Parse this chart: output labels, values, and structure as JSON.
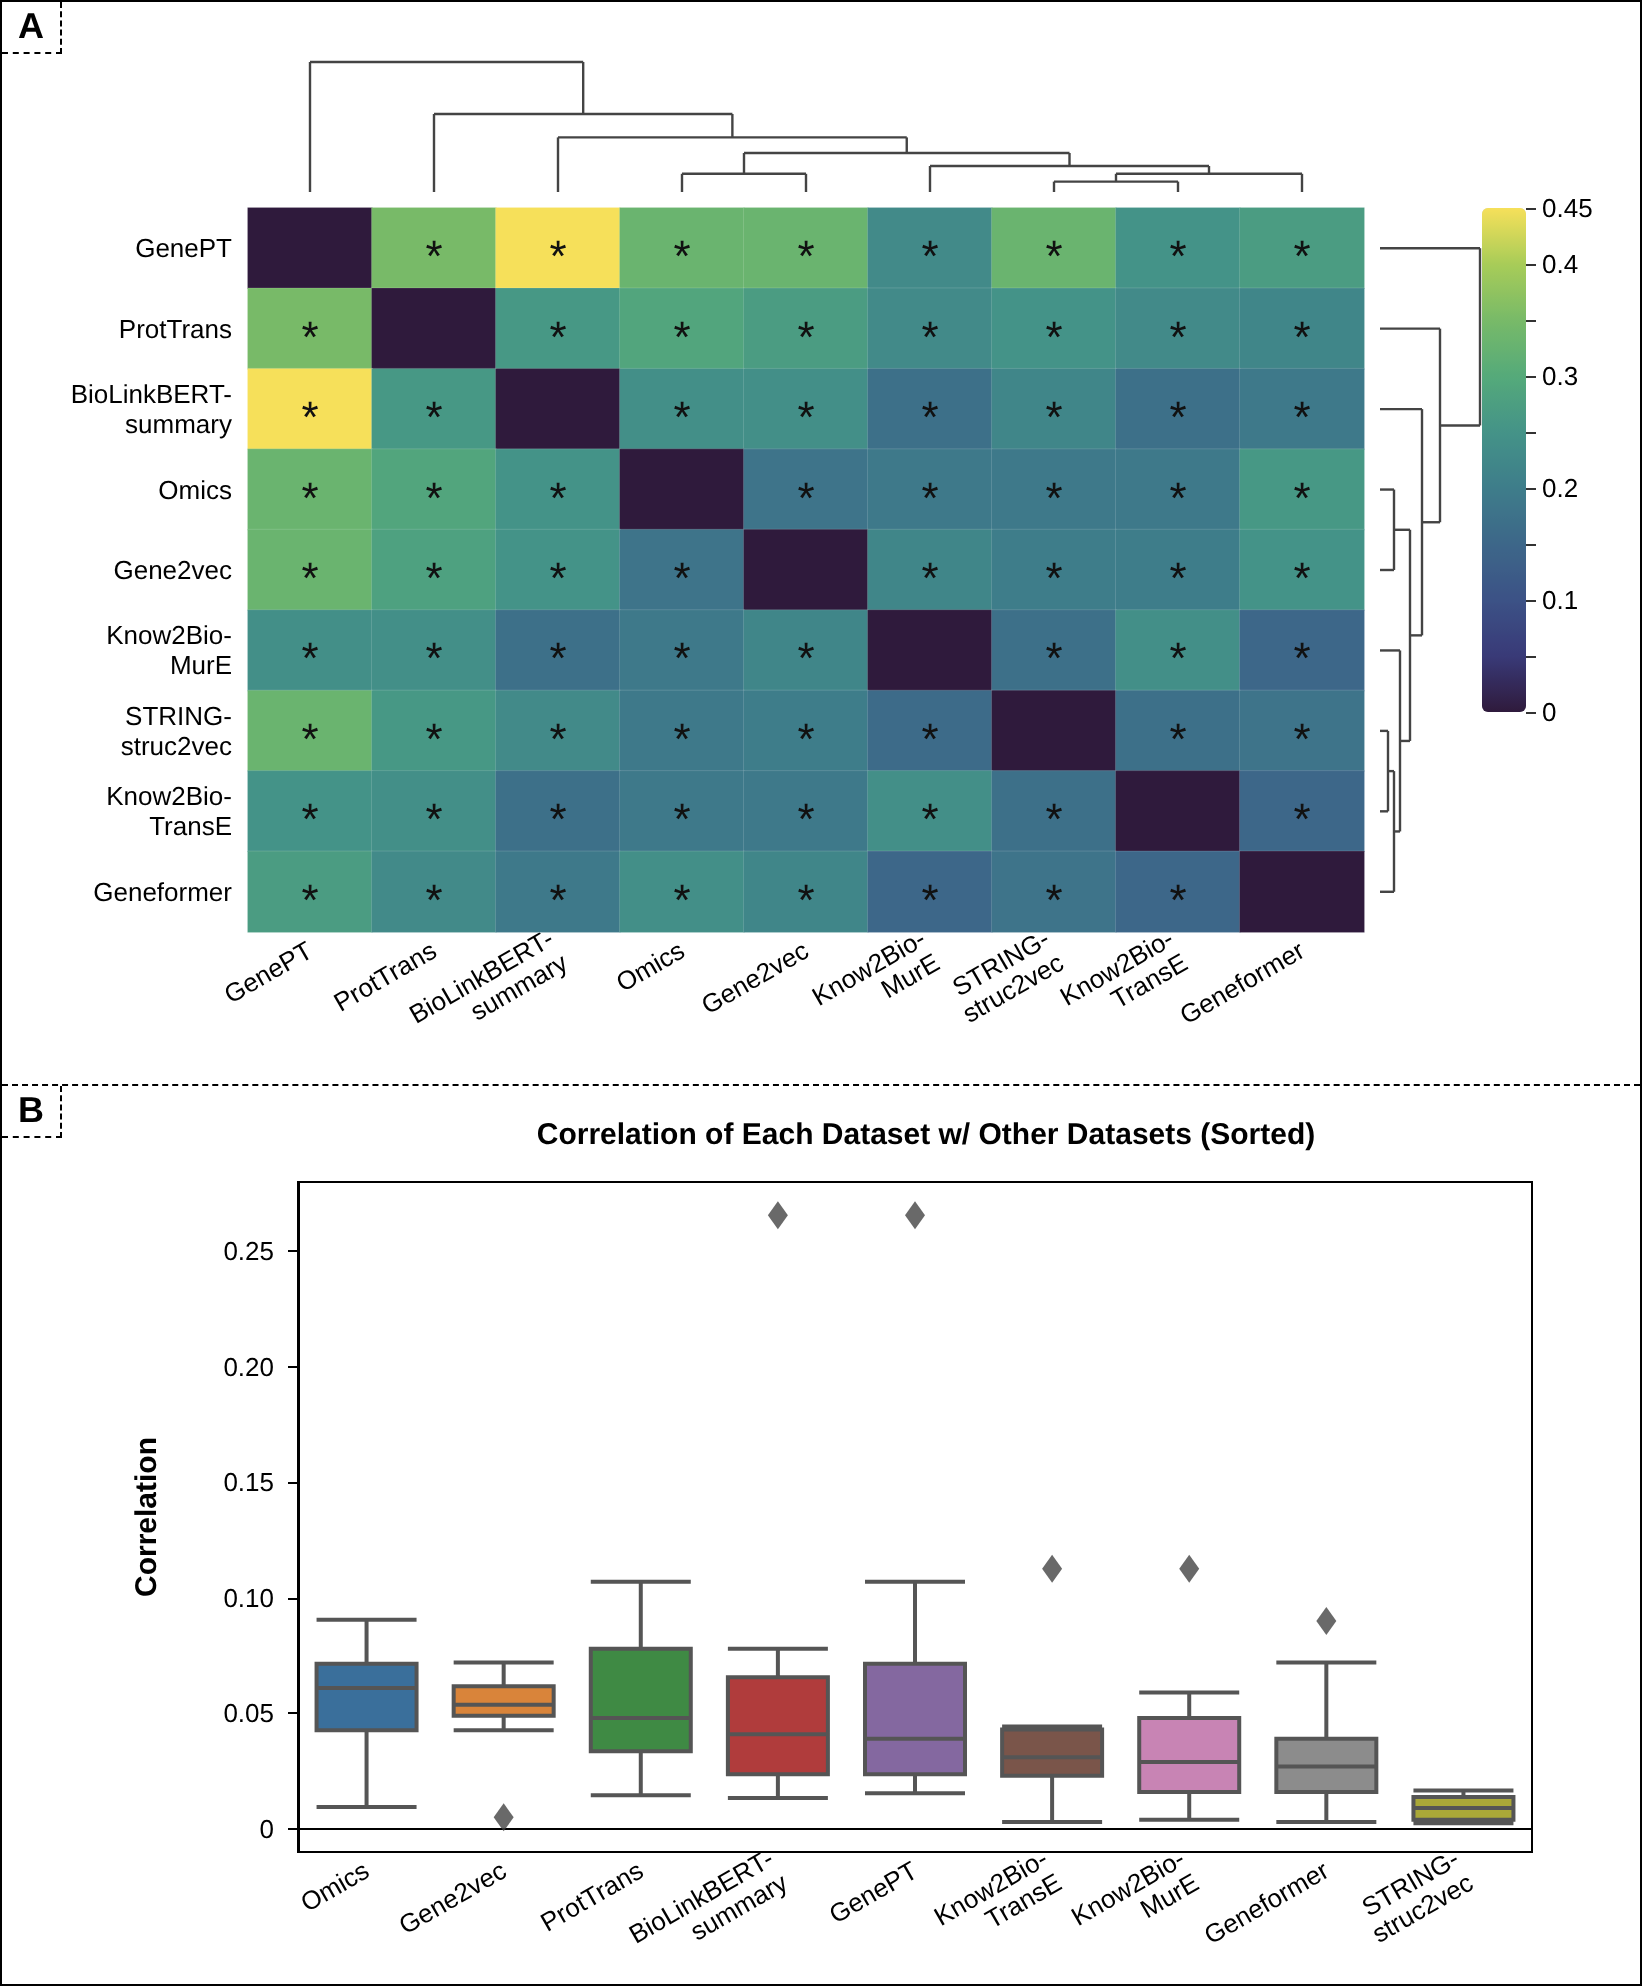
{
  "chart_data": [
    {
      "type": "heatmap",
      "annotations": [
        "A"
      ],
      "categories": [
        "GenePT",
        "ProtTrans",
        "BioLinkBERT-summary",
        "Omics",
        "Gene2vec",
        "Know2Bio-MurE",
        "STRING-struc2vec",
        "Know2Bio-TransE",
        "Geneformer"
      ],
      "y_categories": [
        "GenePT",
        "ProtTrans",
        "BioLinkBERT-summary",
        "Omics",
        "Gene2vec",
        "Know2Bio-MurE",
        "STRING-struc2vec",
        "Know2Bio-TransE",
        "Geneformer"
      ],
      "cells": [
        [
          0,
          0.35,
          0.45,
          0.33,
          0.33,
          0.23,
          0.33,
          0.25,
          0.27
        ],
        [
          0.35,
          0,
          0.26,
          0.29,
          0.27,
          0.23,
          0.25,
          0.23,
          0.22
        ],
        [
          0.45,
          0.26,
          0,
          0.24,
          0.24,
          0.17,
          0.22,
          0.17,
          0.19
        ],
        [
          0.33,
          0.29,
          0.25,
          0,
          0.18,
          0.19,
          0.19,
          0.19,
          0.26
        ],
        [
          0.33,
          0.28,
          0.25,
          0.18,
          0,
          0.22,
          0.2,
          0.2,
          0.25
        ],
        [
          0.24,
          0.24,
          0.17,
          0.19,
          0.22,
          0,
          0.17,
          0.24,
          0.15
        ],
        [
          0.33,
          0.26,
          0.23,
          0.19,
          0.2,
          0.16,
          0,
          0.17,
          0.18
        ],
        [
          0.25,
          0.24,
          0.17,
          0.19,
          0.19,
          0.24,
          0.17,
          0,
          0.15
        ],
        [
          0.27,
          0.23,
          0.19,
          0.24,
          0.22,
          0.15,
          0.18,
          0.15,
          0
        ]
      ],
      "cell_labels": [
        [
          null,
          "*",
          "*",
          "*",
          "*",
          "*",
          "*",
          "*",
          "*"
        ],
        [
          "*",
          null,
          "*",
          "*",
          "*",
          "*",
          "*",
          "*",
          "*"
        ],
        [
          "*",
          "*",
          null,
          "*",
          "*",
          "*",
          "*",
          "*",
          "*"
        ],
        [
          "*",
          "*",
          "*",
          null,
          "*",
          "*",
          "*",
          "*",
          "*"
        ],
        [
          "*",
          "*",
          "*",
          "*",
          null,
          "*",
          "*",
          "*",
          "*"
        ],
        [
          "*",
          "*",
          "*",
          "*",
          "*",
          null,
          "*",
          "*",
          "*"
        ],
        [
          "*",
          "*",
          "*",
          "*",
          "*",
          "*",
          null,
          "*",
          "*"
        ],
        [
          "*",
          "*",
          "*",
          "*",
          "*",
          "*",
          "*",
          null,
          "*"
        ],
        [
          "*",
          "*",
          "*",
          "*",
          "*",
          "*",
          "*",
          "*",
          null
        ]
      ],
      "clim": [
        0,
        0.45
      ],
      "cticks": [
        0,
        {
          "value": 0.05,
          "label": null
        },
        0.1,
        {
          "value": 0.15,
          "label": null
        },
        0.2,
        {
          "value": 0.25,
          "label": null
        },
        0.3,
        {
          "value": 0.35,
          "label": null
        },
        0.4,
        0.45
      ]
    },
    {
      "type": "box",
      "title": "Correlation of Each Dataset w/ Other Datasets (Sorted)",
      "ylabel": "Correlation",
      "annotations": [
        "B"
      ],
      "categories": [
        "Omics",
        "Gene2vec",
        "ProtTrans",
        "BioLinkBERT-summary",
        "GenePT",
        "Know2Bio-TransE",
        "Know2Bio-MurE",
        "Geneformer",
        "STRING-struc2vec"
      ],
      "colors": [
        "#3a6f9b",
        "#d9843a",
        "#3f8a44",
        "#b03c3c",
        "#8468a0",
        "#7a554a",
        "#c884b4",
        "#8c8c8c",
        "#aaa838"
      ],
      "boxes": [
        {
          "low": 0.0095,
          "q1": 0.0427,
          "median": 0.061,
          "q3": 0.0715,
          "high": 0.0905
        },
        {
          "low": 0.0427,
          "q1": 0.049,
          "median": 0.0537,
          "q3": 0.0617,
          "high": 0.072,
          "outliers": [
            0.005
          ]
        },
        {
          "low": 0.0146,
          "q1": 0.0336,
          "median": 0.048,
          "q3": 0.078,
          "high": 0.107
        },
        {
          "low": 0.0134,
          "q1": 0.0237,
          "median": 0.041,
          "q3": 0.0656,
          "high": 0.078,
          "outliers": [
            0.2656
          ]
        },
        {
          "low": 0.0154,
          "q1": 0.0237,
          "median": 0.039,
          "q3": 0.0715,
          "high": 0.107,
          "outliers": [
            0.2656
          ]
        },
        {
          "low": 0.003,
          "q1": 0.023,
          "median": 0.031,
          "q3": 0.043,
          "high": 0.0443,
          "outliers": [
            0.1126
          ]
        },
        {
          "low": 0.004,
          "q1": 0.016,
          "median": 0.029,
          "q3": 0.048,
          "high": 0.059,
          "outliers": [
            0.1126
          ]
        },
        {
          "low": 0.003,
          "q1": 0.016,
          "median": 0.027,
          "q3": 0.039,
          "high": 0.072,
          "outliers": [
            0.09
          ]
        },
        {
          "low": 0.0024,
          "q1": 0.004,
          "median": 0.009,
          "q3": 0.0138,
          "high": 0.0166
        }
      ],
      "ylim": [
        -0.01,
        0.28
      ],
      "yticks": [
        0,
        0.05,
        {
          "value": 0.1,
          "label": "0.10"
        },
        0.15,
        {
          "value": 0.2,
          "label": "0.20"
        },
        0.25
      ]
    }
  ]
}
